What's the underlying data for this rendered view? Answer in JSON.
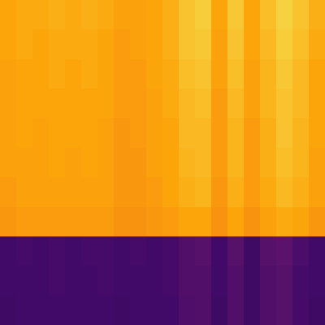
{
  "chart_data": {
    "type": "heatmap",
    "tick_labels": false,
    "color_range": [
      0,
      1
    ],
    "cells": [
      [
        0.8,
        0.81,
        0.81,
        0.82,
        0.81,
        0.82,
        0.81,
        0.79,
        0.79,
        0.8,
        0.82,
        0.86,
        0.88,
        0.8,
        0.87,
        0.8,
        0.85,
        0.89,
        0.86,
        0.82
      ],
      [
        0.8,
        0.81,
        0.8,
        0.81,
        0.81,
        0.81,
        0.8,
        0.78,
        0.79,
        0.8,
        0.82,
        0.86,
        0.87,
        0.79,
        0.86,
        0.8,
        0.84,
        0.88,
        0.85,
        0.81
      ],
      [
        0.79,
        0.8,
        0.8,
        0.81,
        0.8,
        0.81,
        0.8,
        0.78,
        0.78,
        0.8,
        0.81,
        0.85,
        0.86,
        0.79,
        0.85,
        0.79,
        0.83,
        0.87,
        0.84,
        0.8
      ],
      [
        0.79,
        0.8,
        0.8,
        0.8,
        0.8,
        0.8,
        0.8,
        0.78,
        0.78,
        0.79,
        0.81,
        0.84,
        0.85,
        0.78,
        0.84,
        0.79,
        0.83,
        0.86,
        0.84,
        0.8
      ],
      [
        0.79,
        0.8,
        0.79,
        0.8,
        0.8,
        0.8,
        0.79,
        0.77,
        0.78,
        0.79,
        0.8,
        0.84,
        0.84,
        0.78,
        0.83,
        0.78,
        0.82,
        0.86,
        0.83,
        0.8
      ],
      [
        0.79,
        0.79,
        0.79,
        0.8,
        0.79,
        0.8,
        0.79,
        0.77,
        0.77,
        0.79,
        0.8,
        0.83,
        0.84,
        0.78,
        0.83,
        0.78,
        0.82,
        0.85,
        0.83,
        0.79
      ],
      [
        0.78,
        0.79,
        0.79,
        0.79,
        0.79,
        0.79,
        0.79,
        0.77,
        0.77,
        0.78,
        0.8,
        0.82,
        0.83,
        0.77,
        0.82,
        0.78,
        0.81,
        0.84,
        0.82,
        0.79
      ],
      [
        0.77,
        0.78,
        0.78,
        0.78,
        0.78,
        0.78,
        0.78,
        0.76,
        0.76,
        0.77,
        0.78,
        0.8,
        0.8,
        0.76,
        0.8,
        0.76,
        0.79,
        0.81,
        0.8,
        0.77
      ],
      [
        0.2,
        0.21,
        0.2,
        0.21,
        0.2,
        0.21,
        0.21,
        0.2,
        0.21,
        0.2,
        0.21,
        0.24,
        0.25,
        0.2,
        0.25,
        0.19,
        0.25,
        0.26,
        0.22,
        0.2
      ],
      [
        0.2,
        0.2,
        0.2,
        0.21,
        0.2,
        0.2,
        0.21,
        0.2,
        0.2,
        0.2,
        0.21,
        0.24,
        0.24,
        0.2,
        0.24,
        0.19,
        0.24,
        0.25,
        0.21,
        0.2
      ],
      [
        0.19,
        0.2,
        0.2,
        0.2,
        0.2,
        0.2,
        0.2,
        0.19,
        0.2,
        0.2,
        0.2,
        0.23,
        0.24,
        0.19,
        0.24,
        0.19,
        0.24,
        0.25,
        0.21,
        0.19
      ]
    ]
  }
}
